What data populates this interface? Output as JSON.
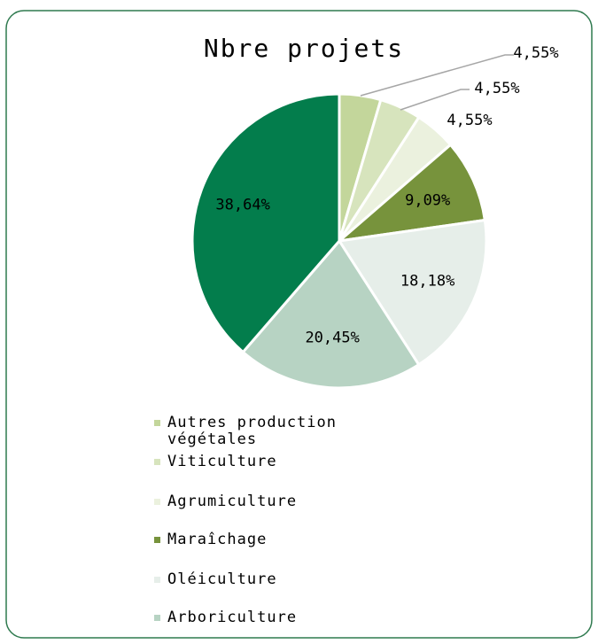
{
  "chart_data": {
    "type": "pie",
    "title": "Nbre projets",
    "categories": [
      "Autres production végétales",
      "Viticulture",
      "Agrumiculture",
      "Maraîchage",
      "Oléiculture",
      "Arboriculture",
      null
    ],
    "values": [
      4.55,
      4.55,
      4.55,
      9.09,
      18.18,
      20.45,
      38.64
    ],
    "value_labels": [
      "4,55%",
      "4,55%",
      "4,55%",
      "9,09%",
      "18,18%",
      "20,45%",
      "38,64%"
    ],
    "colors": [
      "#c3d69b",
      "#d7e4bd",
      "#ebf1de",
      "#77933c",
      "#e6eee9",
      "#b7d3c3",
      "#037d4c"
    ],
    "legend": "bottom"
  }
}
